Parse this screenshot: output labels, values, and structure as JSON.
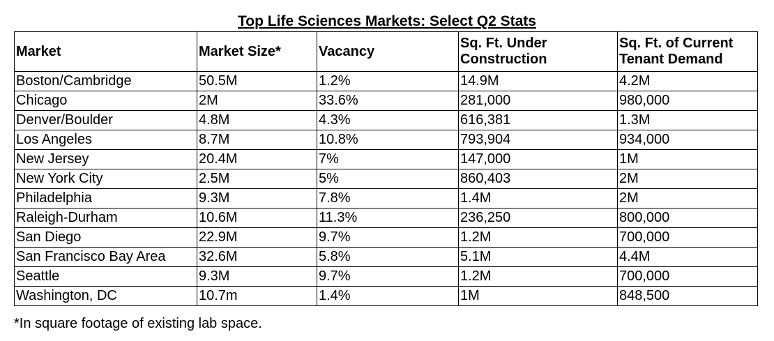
{
  "title": "Top Life Sciences Markets: Select Q2 Stats",
  "table": {
    "headers": [
      "Market",
      "Market Size*",
      "Vacancy",
      "Sq. Ft. Under Construction",
      "Sq. Ft. of Current Tenant Demand"
    ],
    "rows": [
      [
        "Boston/Cambridge",
        "50.5M",
        "1.2%",
        "14.9M",
        "4.2M"
      ],
      [
        "Chicago",
        "2M",
        "33.6%",
        "281,000",
        "980,000"
      ],
      [
        "Denver/Boulder",
        "4.8M",
        "4.3%",
        "616,381",
        "1.3M"
      ],
      [
        "Los Angeles",
        "8.7M",
        "10.8%",
        "793,904",
        "934,000"
      ],
      [
        "New Jersey",
        "20.4M",
        "7%",
        "147,000",
        "1M"
      ],
      [
        "New York City",
        "2.5M",
        "5%",
        "860,403",
        "2M"
      ],
      [
        "Philadelphia",
        "9.3M",
        "7.8%",
        "1.4M",
        "2M"
      ],
      [
        "Raleigh-Durham",
        "10.6M",
        "11.3%",
        "236,250",
        "800,000"
      ],
      [
        "San Diego",
        "22.9M",
        "9.7%",
        "1.2M",
        "700,000"
      ],
      [
        "San Francisco Bay Area",
        "32.6M",
        "5.8%",
        "5.1M",
        "4.4M"
      ],
      [
        "Seattle",
        "9.3M",
        "9.7%",
        "1.2M",
        "700,000"
      ],
      [
        "Washington, DC",
        "10.7m",
        "1.4%",
        "1M",
        "848,500"
      ]
    ]
  },
  "footnote": "*In square footage of existing lab space."
}
